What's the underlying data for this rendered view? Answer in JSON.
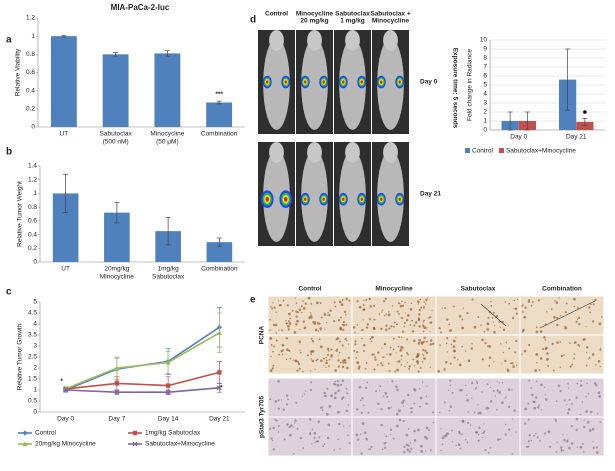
{
  "panel_labels": [
    "a",
    "b",
    "c",
    "d",
    "e"
  ],
  "mouse_panel": {
    "columns": [
      [
        "Control"
      ],
      [
        "Minocycline",
        "20 mg/kg"
      ],
      [
        "Sabutoclax",
        "1 mg/kg"
      ],
      [
        "Sabutoclax +",
        "Minocycline"
      ]
    ],
    "rows": [
      "Day 0",
      "Day 21"
    ],
    "side_label": "Exposure time: 5 seconds"
  },
  "histology_panel": {
    "columns": [
      "Control",
      "Minocycline",
      "Sabutoclax",
      "Combination"
    ],
    "rows": [
      "PCNA",
      "pStat3 Tyr705"
    ]
  },
  "chart_data": [
    {
      "type": "bar",
      "title": "MIA-PaCa-2-luc",
      "y_label": "Relative Viability",
      "categories": [
        [
          "UT"
        ],
        [
          "Sabutoclax",
          "(500 nM)"
        ],
        [
          "Minocycline",
          "(50 μM)"
        ],
        [
          "Combination"
        ]
      ],
      "values": [
        1.0,
        0.8,
        0.81,
        0.27
      ],
      "errors": [
        0.01,
        0.02,
        0.03,
        0.015
      ],
      "color": "#4f81bd",
      "ylim": [
        0,
        1.2
      ],
      "yticks": [
        0,
        0.2,
        0.4,
        0.6,
        0.8,
        1,
        1.2
      ],
      "grid": false,
      "annotation": "***"
    },
    {
      "type": "bar",
      "y_label": "Relative Tumor Weight",
      "categories": [
        [
          "UT"
        ],
        [
          "20mg/kg",
          "Minocycline"
        ],
        [
          "1mg/kg",
          "Sabutoclax"
        ],
        [
          "Combination"
        ]
      ],
      "values": [
        1.0,
        0.72,
        0.45,
        0.29
      ],
      "errors": [
        0.28,
        0.15,
        0.2,
        0.06
      ],
      "color": "#4f81bd",
      "ylim": [
        0,
        1.4
      ],
      "yticks": [
        0,
        0.2,
        0.4,
        0.6,
        0.8,
        1,
        1.2,
        1.4
      ],
      "grid": false
    },
    {
      "type": "line",
      "y_label": "Relative Tumor Growth",
      "categories": [
        "Day 0",
        "Day 7",
        "Day 14",
        "Day 21"
      ],
      "series": [
        {
          "name": "Control",
          "color": "#4f81bd",
          "marker": "diamond",
          "values": [
            1.0,
            1.95,
            2.3,
            3.85
          ],
          "errors": [
            0.1,
            0.5,
            0.6,
            0.9
          ]
        },
        {
          "name": "1mg/kg Sabutoclax",
          "color": "#c0504d",
          "marker": "square",
          "values": [
            1.05,
            1.3,
            1.2,
            1.8
          ],
          "errors": [
            0.1,
            0.3,
            0.4,
            0.5
          ]
        },
        {
          "name": "20mg/kg Minocycline",
          "color": "#9bbb59",
          "marker": "triangle",
          "values": [
            1.05,
            2.0,
            2.25,
            3.6
          ],
          "errors": [
            0.1,
            0.5,
            0.5,
            0.9
          ]
        },
        {
          "name": "Sabutoclax+Minocycline",
          "color": "#8064a2",
          "marker": "x",
          "values": [
            1.0,
            0.9,
            0.9,
            1.1
          ],
          "errors": [
            0.05,
            0.1,
            0.1,
            0.2
          ]
        }
      ],
      "ylim": [
        0,
        5
      ],
      "yticks": [
        0,
        0.5,
        1,
        1.5,
        2,
        2.5,
        3,
        3.5,
        4,
        4.5,
        5
      ],
      "grid": false,
      "annotations": [
        "*",
        "*"
      ]
    },
    {
      "type": "grouped_bar",
      "y_label": "Fold change in Radiance",
      "categories": [
        "Day 0",
        "Day 21"
      ],
      "series": [
        {
          "name": "Control",
          "color": "#4f81bd",
          "values": [
            1,
            5.6
          ],
          "errors": [
            1,
            3.4
          ]
        },
        {
          "name": "Sabutoclax+Minocycline",
          "color": "#c0504d",
          "values": [
            1,
            0.9
          ],
          "errors": [
            1,
            0.4
          ]
        }
      ],
      "ylim": [
        0,
        10
      ],
      "yticks": [
        0,
        1,
        2,
        3,
        4,
        5,
        6,
        7,
        8,
        9,
        10
      ],
      "grid": true
    }
  ]
}
